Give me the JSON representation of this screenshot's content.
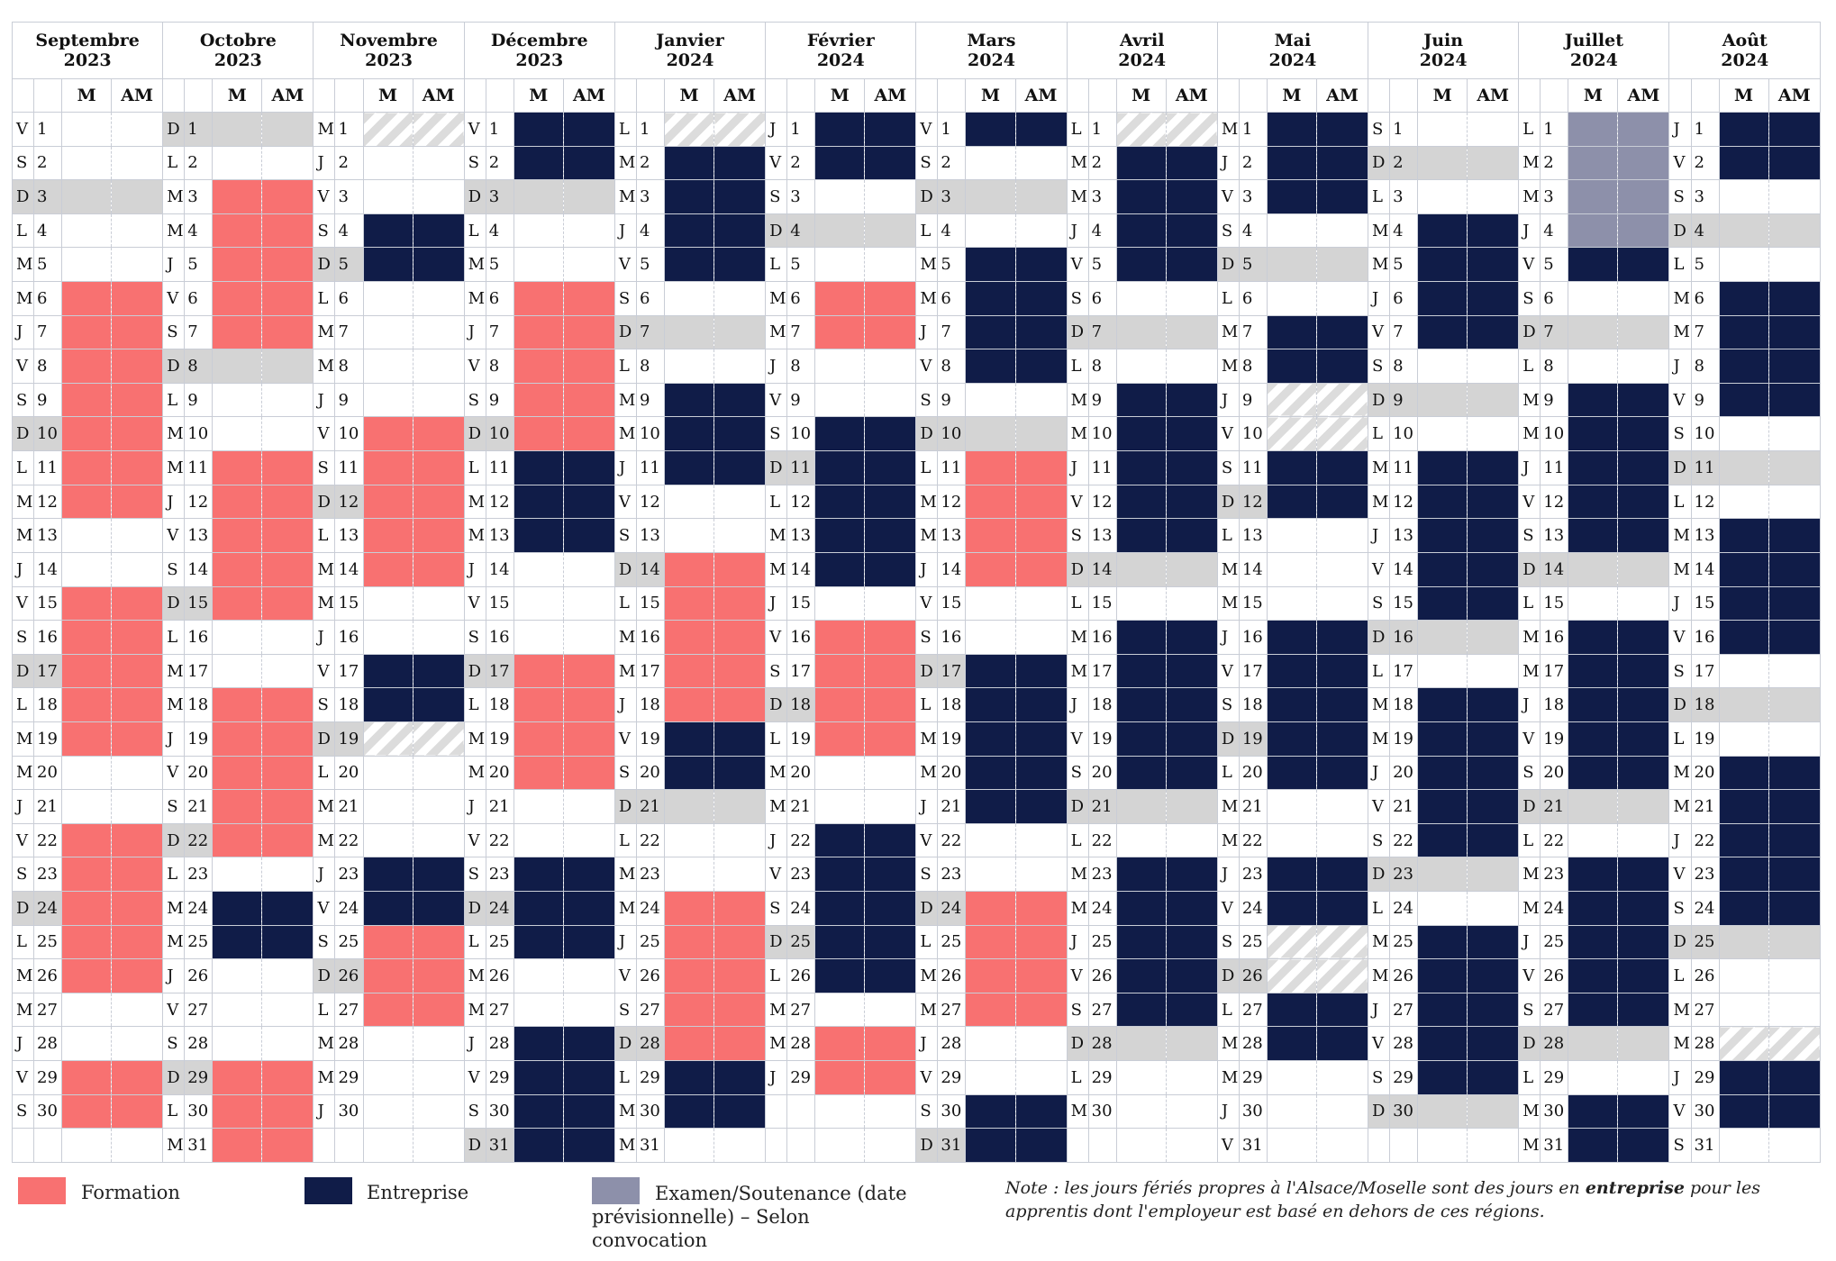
{
  "column_labels": {
    "morning": "M",
    "afternoon": "AM"
  },
  "months": [
    {
      "name": "Septembre",
      "year": "2023",
      "days": 30,
      "start": 4
    },
    {
      "name": "Octobre",
      "year": "2023",
      "days": 31,
      "start": 6
    },
    {
      "name": "Novembre",
      "year": "2023",
      "days": 30,
      "start": 2
    },
    {
      "name": "Décembre",
      "year": "2023",
      "days": 31,
      "start": 4
    },
    {
      "name": "Janvier",
      "year": "2024",
      "days": 31,
      "start": 0
    },
    {
      "name": "Février",
      "year": "2024",
      "days": 29,
      "start": 3
    },
    {
      "name": "Mars",
      "year": "2024",
      "days": 31,
      "start": 4
    },
    {
      "name": "Avril",
      "year": "2024",
      "days": 30,
      "start": 0
    },
    {
      "name": "Mai",
      "year": "2024",
      "days": 31,
      "start": 2
    },
    {
      "name": "Juin",
      "year": "2024",
      "days": 30,
      "start": 5
    },
    {
      "name": "Juillet",
      "year": "2024",
      "days": 31,
      "start": 0
    },
    {
      "name": "Août",
      "year": "2024",
      "days": 31,
      "start": 3
    }
  ],
  "weekday_letters": [
    "L",
    "M",
    "M",
    "J",
    "V",
    "S",
    "D"
  ],
  "schedule": [
    "NNN..FFFFFFF..FFFFF..FFFFF..FFFFF.",
    "..FFFFF...FFFFF..FFFFF.EE...FFF..EEE",
    "H..EE....FFFFF..EEH...EEFFF...FFFFF..EEE",
    "EE...FFFFFEEE...FFFF..EEE..EEEEE...HH.EEE..",
    "HEEEE...EEE..FFFFFEE...FFFFFEE...FFFFF.EE...FFFF",
    "EE...FF..EEEEE.FFFF..EEEEE.FFFFF..EEEEE.",
    "E...EEEE..FFFF..EEEEE..FFFF..EEEEE..EEEEH",
    "HEEEE...EEEEE..EEEEE..EEEEE...EEEE",
    "EEE...EEHHEE...EEEEE..EEHHEE...EEEEEE..EE",
    "...EEEE...EEEEE..EEEEE..EEEEE..EEEE",
    "XXXXE...EEEEE..EEEEE..EEEEE..EEEEE.",
    "EE...EEEE...EEEE...EEEEE...HEE...EEEE..EEEEE..EEE.X.."
  ],
  "legend": {
    "formation": "Formation",
    "entreprise": "Entreprise",
    "examen": "Examen/Soutenance (date prévisionnelle) – Selon convocation"
  },
  "note": {
    "before": "Note : les jours fériés propres à l'Alsace/Moselle sont des jours en ",
    "emphasis": "entreprise",
    "after": " pour les apprentis dont  l'employeur est basé en dehors de ces régions."
  }
}
